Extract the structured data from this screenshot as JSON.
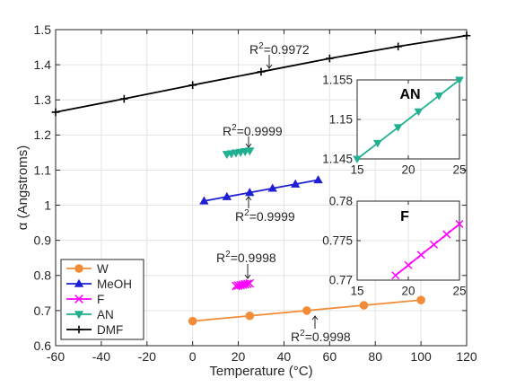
{
  "chart_data": [
    {
      "type": "line",
      "xlabel": "Temperature (°C)",
      "ylabel": "α (Angstroms)",
      "xlim": [
        -60,
        120
      ],
      "ylim": [
        0.6,
        1.5
      ],
      "xticks": [
        -60,
        -40,
        -20,
        0,
        20,
        40,
        60,
        80,
        100,
        120
      ],
      "yticks": [
        0.6,
        0.7,
        0.8,
        0.9,
        1.0,
        1.1,
        1.2,
        1.3,
        1.4,
        1.5
      ],
      "xtick_labels": [
        "-60",
        "-40",
        "-20",
        "0",
        "20",
        "40",
        "60",
        "80",
        "100",
        "120"
      ],
      "ytick_labels": [
        "0.6",
        "0.7",
        "0.8",
        "0.9",
        "1",
        "1.1",
        "1.2",
        "1.3",
        "1.4",
        "1.5"
      ],
      "grid": true,
      "legend": "bottom-left",
      "series": [
        {
          "name": "W",
          "color": "#f28c38",
          "marker": "circle",
          "x": [
            0,
            25,
            50,
            75,
            100
          ],
          "y": [
            0.67,
            0.685,
            0.7,
            0.715,
            0.73
          ]
        },
        {
          "name": "MeOH",
          "color": "#1f1fd6",
          "marker": "triangle-up",
          "x": [
            5,
            15,
            25,
            35,
            45,
            55
          ],
          "y": [
            1.012,
            1.024,
            1.036,
            1.048,
            1.06,
            1.072
          ]
        },
        {
          "name": "F",
          "color": "#ff00ff",
          "marker": "x",
          "x": [
            19,
            20,
            21,
            22,
            23,
            24,
            25
          ],
          "y": [
            0.77,
            0.7713,
            0.7725,
            0.7738,
            0.775,
            0.7763,
            0.7775
          ]
        },
        {
          "name": "AN",
          "color": "#20b090",
          "marker": "triangle-down",
          "x": [
            15,
            17,
            19,
            21,
            23,
            25
          ],
          "y": [
            1.145,
            1.147,
            1.149,
            1.151,
            1.153,
            1.155
          ]
        },
        {
          "name": "DMF",
          "color": "#000000",
          "marker": "plus",
          "x": [
            -60,
            -30,
            0,
            30,
            60,
            90,
            120
          ],
          "y": [
            1.265,
            1.303,
            1.342,
            1.38,
            1.418,
            1.452,
            1.483
          ]
        }
      ],
      "annotations": [
        {
          "series": "DMF",
          "prefix": "R",
          "sup": "2",
          "suffix": "=0.9972",
          "at": [
            30,
            1.38
          ]
        },
        {
          "series": "AN",
          "prefix": "R",
          "sup": "2",
          "suffix": "=0.9999",
          "at": [
            20,
            1.151
          ]
        },
        {
          "series": "MeOH",
          "prefix": "R",
          "sup": "2",
          "suffix": "=0.9999",
          "at": [
            25,
            1.036
          ]
        },
        {
          "series": "F",
          "prefix": "R",
          "sup": "2",
          "suffix": "=0.9998",
          "at": [
            22,
            0.774
          ]
        },
        {
          "series": "W",
          "prefix": "R",
          "sup": "2",
          "suffix": "=0.9998",
          "at": [
            50,
            0.7
          ]
        }
      ]
    },
    {
      "type": "line",
      "inset": true,
      "title": "AN",
      "xlim": [
        15,
        25
      ],
      "ylim": [
        1.145,
        1.155
      ],
      "xticks": [
        15,
        20,
        25
      ],
      "yticks": [
        1.145,
        1.15,
        1.155
      ],
      "xtick_labels": [
        "15",
        "20",
        "25"
      ],
      "ytick_labels": [
        "1.145",
        "1.15",
        "1.155"
      ],
      "grid": true,
      "series": [
        {
          "name": "AN",
          "color": "#20b090",
          "marker": "triangle-down",
          "x": [
            15,
            17,
            19,
            21,
            23,
            25
          ],
          "y": [
            1.145,
            1.147,
            1.149,
            1.151,
            1.153,
            1.155
          ]
        }
      ]
    },
    {
      "type": "line",
      "inset": true,
      "title": "F",
      "xlim": [
        15,
        25
      ],
      "ylim": [
        0.77,
        0.78
      ],
      "xticks": [
        15,
        20,
        25
      ],
      "yticks": [
        0.77,
        0.775,
        0.78
      ],
      "xtick_labels": [
        "15",
        "20",
        "25"
      ],
      "ytick_labels": [
        "0.77",
        "0.775",
        "0.78"
      ],
      "grid": true,
      "series": [
        {
          "name": "F",
          "color": "#ff00ff",
          "marker": "x",
          "x": [
            18.75,
            20,
            21.25,
            22.5,
            23.75,
            25
          ],
          "y": [
            0.7706,
            0.7719,
            0.7732,
            0.7745,
            0.7758,
            0.7771
          ]
        }
      ]
    }
  ]
}
